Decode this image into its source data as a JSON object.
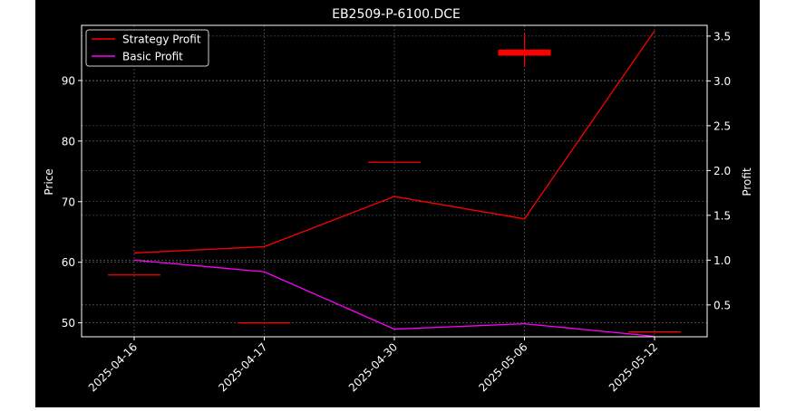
{
  "title": "EB2509-P-6100.DCE",
  "chart_data": {
    "type": "line",
    "title": "EB2509-P-6100.DCE",
    "categories": [
      "2025-04-16",
      "2025-04-17",
      "2025-04-30",
      "2025-05-06",
      "2025-05-12"
    ],
    "left_axis": {
      "label": "Price",
      "ylim": [
        47.7,
        99.1
      ],
      "ticks": [
        50,
        60,
        70,
        80,
        90
      ]
    },
    "right_axis": {
      "label": "Profit",
      "ylim": [
        0.145,
        3.62
      ],
      "ticks": [
        "0.5",
        "1.0",
        "1.5",
        "2.0",
        "2.5",
        "3.0",
        "3.5"
      ]
    },
    "grid": true,
    "legend_position": "top-left",
    "candles": [
      {
        "x": "2025-04-16",
        "open": 57.9,
        "close": 57.9,
        "high": 57.9,
        "low": 57.9
      },
      {
        "x": "2025-04-17",
        "open": 50.0,
        "close": 50.0,
        "high": 50.0,
        "low": 50.0
      },
      {
        "x": "2025-04-30",
        "open": 76.5,
        "close": 76.5,
        "high": 76.5,
        "low": 76.5
      },
      {
        "x": "2025-05-06",
        "open": 95.1,
        "close": 94.1,
        "high": 97.7,
        "low": 92.3
      },
      {
        "x": "2025-05-12",
        "open": 48.5,
        "close": 48.5,
        "high": 48.5,
        "low": 48.5
      }
    ],
    "series": [
      {
        "name": "Strategy Profit",
        "color": "#ff0000",
        "axis": "right",
        "values": [
          1.08,
          1.15,
          1.71,
          1.46,
          3.56
        ]
      },
      {
        "name": "Basic Profit",
        "color": "#ff00ff",
        "axis": "right",
        "values": [
          1.0,
          0.87,
          0.23,
          0.29,
          0.15
        ]
      }
    ]
  }
}
